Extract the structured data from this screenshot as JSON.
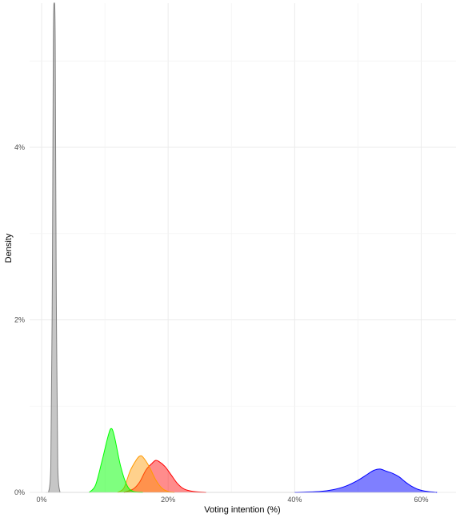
{
  "chart_data": {
    "type": "area",
    "title": "",
    "xlabel": "Voting intention (%)",
    "ylabel": "Density",
    "xlim": [
      -1.9,
      65.5
    ],
    "ylim": [
      0,
      5.67
    ],
    "x_ticks": [
      0,
      20,
      40,
      60
    ],
    "x_tick_labels": [
      "0%",
      "20%",
      "40%",
      "60%"
    ],
    "y_ticks": [
      0,
      2,
      4
    ],
    "y_tick_labels": [
      "0%",
      "2%",
      "4%"
    ],
    "grid": true,
    "legend": "none",
    "series": [
      {
        "color": "#0000ff",
        "fill_opacity": 0.5,
        "points": [
          [
            40,
            0
          ],
          [
            44,
            0.01
          ],
          [
            46,
            0.03
          ],
          [
            48,
            0.07
          ],
          [
            50,
            0.14
          ],
          [
            51.5,
            0.21
          ],
          [
            52.5,
            0.255
          ],
          [
            53.5,
            0.27
          ],
          [
            54.5,
            0.245
          ],
          [
            55.5,
            0.22
          ],
          [
            56.5,
            0.18
          ],
          [
            57.5,
            0.12
          ],
          [
            58.5,
            0.07
          ],
          [
            59.5,
            0.035
          ],
          [
            61,
            0.01
          ],
          [
            62.5,
            0
          ]
        ]
      },
      {
        "color": "#ff0000",
        "fill_opacity": 0.45,
        "points": [
          [
            13,
            0
          ],
          [
            14.5,
            0.04
          ],
          [
            15.5,
            0.12
          ],
          [
            16.5,
            0.26
          ],
          [
            17.5,
            0.34
          ],
          [
            18,
            0.37
          ],
          [
            18.5,
            0.36
          ],
          [
            19.5,
            0.3
          ],
          [
            20.5,
            0.2
          ],
          [
            21.5,
            0.1
          ],
          [
            22.5,
            0.04
          ],
          [
            24,
            0.01
          ],
          [
            26,
            0
          ]
        ]
      },
      {
        "color": "#ff9900",
        "fill_opacity": 0.45,
        "points": [
          [
            12,
            0
          ],
          [
            13,
            0.05
          ],
          [
            14,
            0.25
          ],
          [
            15,
            0.38
          ],
          [
            15.5,
            0.42
          ],
          [
            16,
            0.41
          ],
          [
            17,
            0.3
          ],
          [
            18,
            0.15
          ],
          [
            19,
            0.05
          ],
          [
            20,
            0.01
          ],
          [
            21,
            0
          ]
        ]
      },
      {
        "color": "#00ff00",
        "fill_opacity": 0.5,
        "points": [
          [
            7.5,
            0
          ],
          [
            8.5,
            0.08
          ],
          [
            9.5,
            0.35
          ],
          [
            10.5,
            0.65
          ],
          [
            11,
            0.74
          ],
          [
            11.5,
            0.65
          ],
          [
            12.5,
            0.3
          ],
          [
            13.5,
            0.08
          ],
          [
            14.5,
            0.01
          ],
          [
            16,
            0
          ]
        ]
      },
      {
        "color": "#808080",
        "fill_opacity": 0.45,
        "points": [
          [
            1.1,
            0
          ],
          [
            1.45,
            0.3
          ],
          [
            1.7,
            2.5
          ],
          [
            1.85,
            5.2
          ],
          [
            2.0,
            5.67
          ],
          [
            2.15,
            5.2
          ],
          [
            2.3,
            2.5
          ],
          [
            2.55,
            0.3
          ],
          [
            2.9,
            0
          ]
        ]
      }
    ]
  }
}
